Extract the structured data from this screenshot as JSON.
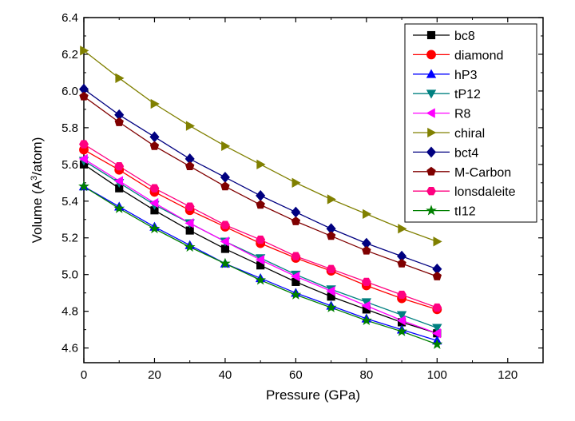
{
  "chart_data": {
    "type": "line",
    "title": "",
    "xlabel": "Pressure (GPa)",
    "ylabel_parts": {
      "pre": "Volume (A",
      "sup": "3",
      "post": "/atom)"
    },
    "xlim": [
      0,
      130
    ],
    "ylim": [
      4.52,
      6.4
    ],
    "x_ticks": [
      0,
      20,
      40,
      60,
      80,
      100,
      120
    ],
    "y_ticks": [
      4.6,
      4.8,
      5.0,
      5.2,
      5.4,
      5.6,
      5.8,
      6.0,
      6.2,
      6.4
    ],
    "x_tick_labels": [
      "0",
      "20",
      "40",
      "60",
      "80",
      "100",
      "120"
    ],
    "y_tick_labels": [
      "4.6",
      "4.8",
      "5.0",
      "5.2",
      "5.4",
      "5.6",
      "5.8",
      "6.0",
      "6.2",
      "6.4"
    ],
    "grid": false,
    "legend_position": "top-right",
    "x": [
      0,
      10,
      20,
      30,
      40,
      50,
      60,
      70,
      80,
      90,
      100
    ],
    "series": [
      {
        "name": "bc8",
        "color": "#000000",
        "marker": "square",
        "values": [
          5.6,
          5.47,
          5.35,
          5.24,
          5.14,
          5.05,
          4.96,
          4.88,
          4.81,
          4.74,
          4.68
        ]
      },
      {
        "name": "diamond",
        "color": "#ff0000",
        "marker": "circle",
        "values": [
          5.68,
          5.57,
          5.45,
          5.35,
          5.26,
          5.17,
          5.09,
          5.02,
          4.94,
          4.87,
          4.81
        ]
      },
      {
        "name": "hP3",
        "color": "#0000ff",
        "marker": "triangle-up",
        "values": [
          5.48,
          5.37,
          5.26,
          5.16,
          5.06,
          4.98,
          4.9,
          4.83,
          4.76,
          4.7,
          4.64
        ]
      },
      {
        "name": "tP12",
        "color": "#008080",
        "marker": "triangle-down",
        "values": [
          5.62,
          5.5,
          5.38,
          5.28,
          5.18,
          5.09,
          5.0,
          4.92,
          4.85,
          4.78,
          4.71
        ]
      },
      {
        "name": "R8",
        "color": "#ff00ff",
        "marker": "triangle-left",
        "values": [
          5.63,
          5.51,
          5.39,
          5.28,
          5.18,
          5.08,
          4.99,
          4.91,
          4.83,
          4.75,
          4.68
        ]
      },
      {
        "name": "chiral",
        "color": "#808000",
        "marker": "triangle-right",
        "values": [
          6.22,
          6.07,
          5.93,
          5.81,
          5.7,
          5.6,
          5.5,
          5.41,
          5.33,
          5.25,
          5.18
        ]
      },
      {
        "name": "bct4",
        "color": "#000080",
        "marker": "diamond",
        "values": [
          6.01,
          5.87,
          5.75,
          5.63,
          5.53,
          5.43,
          5.34,
          5.25,
          5.17,
          5.1,
          5.03
        ]
      },
      {
        "name": "M-Carbon",
        "color": "#800000",
        "marker": "pentagon",
        "values": [
          5.97,
          5.83,
          5.7,
          5.59,
          5.48,
          5.38,
          5.29,
          5.21,
          5.13,
          5.06,
          4.99
        ]
      },
      {
        "name": "lonsdaleite",
        "color": "#ff0080",
        "marker": "hexagon",
        "values": [
          5.71,
          5.59,
          5.47,
          5.37,
          5.27,
          5.19,
          5.1,
          5.03,
          4.96,
          4.89,
          4.82
        ]
      },
      {
        "name": "tI12",
        "color": "#008000",
        "marker": "star",
        "values": [
          5.48,
          5.36,
          5.25,
          5.15,
          5.06,
          4.97,
          4.89,
          4.82,
          4.75,
          4.69,
          4.62
        ]
      }
    ]
  }
}
